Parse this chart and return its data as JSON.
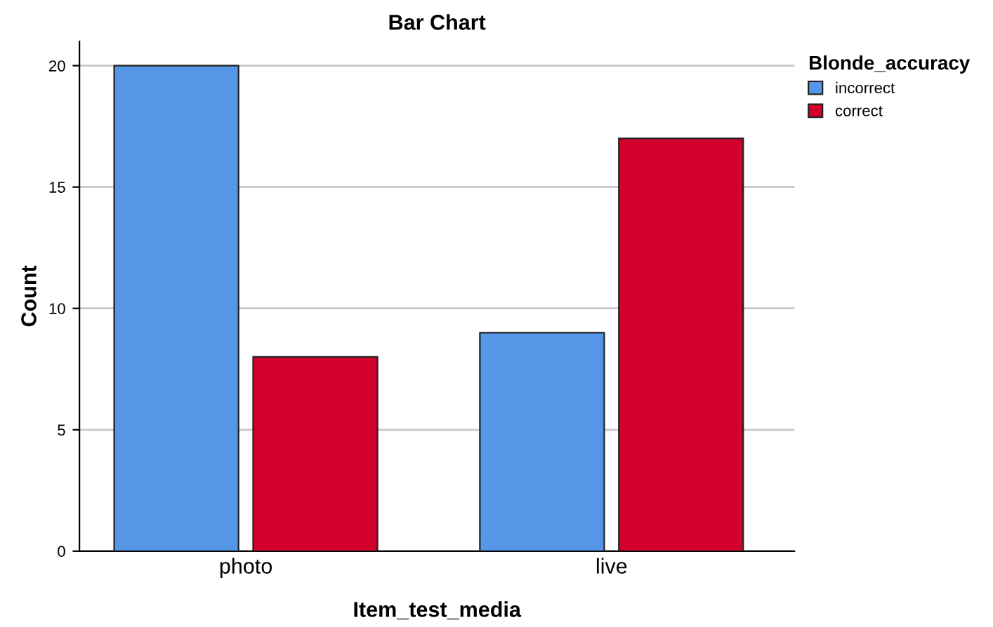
{
  "chart_data": {
    "type": "bar",
    "title": "Bar Chart",
    "xlabel": "Item_test_media",
    "ylabel": "Count",
    "legend_title": "Blonde_accuracy",
    "categories": [
      "photo",
      "live"
    ],
    "series": [
      {
        "name": "incorrect",
        "color": "#5596e6",
        "values": [
          20,
          9
        ]
      },
      {
        "name": "correct",
        "color": "#d3002c",
        "values": [
          8,
          17
        ]
      }
    ],
    "ylim": [
      0,
      21
    ],
    "yticks": [
      0,
      5,
      10,
      15,
      20
    ],
    "grid": "y",
    "legend": "top right"
  }
}
